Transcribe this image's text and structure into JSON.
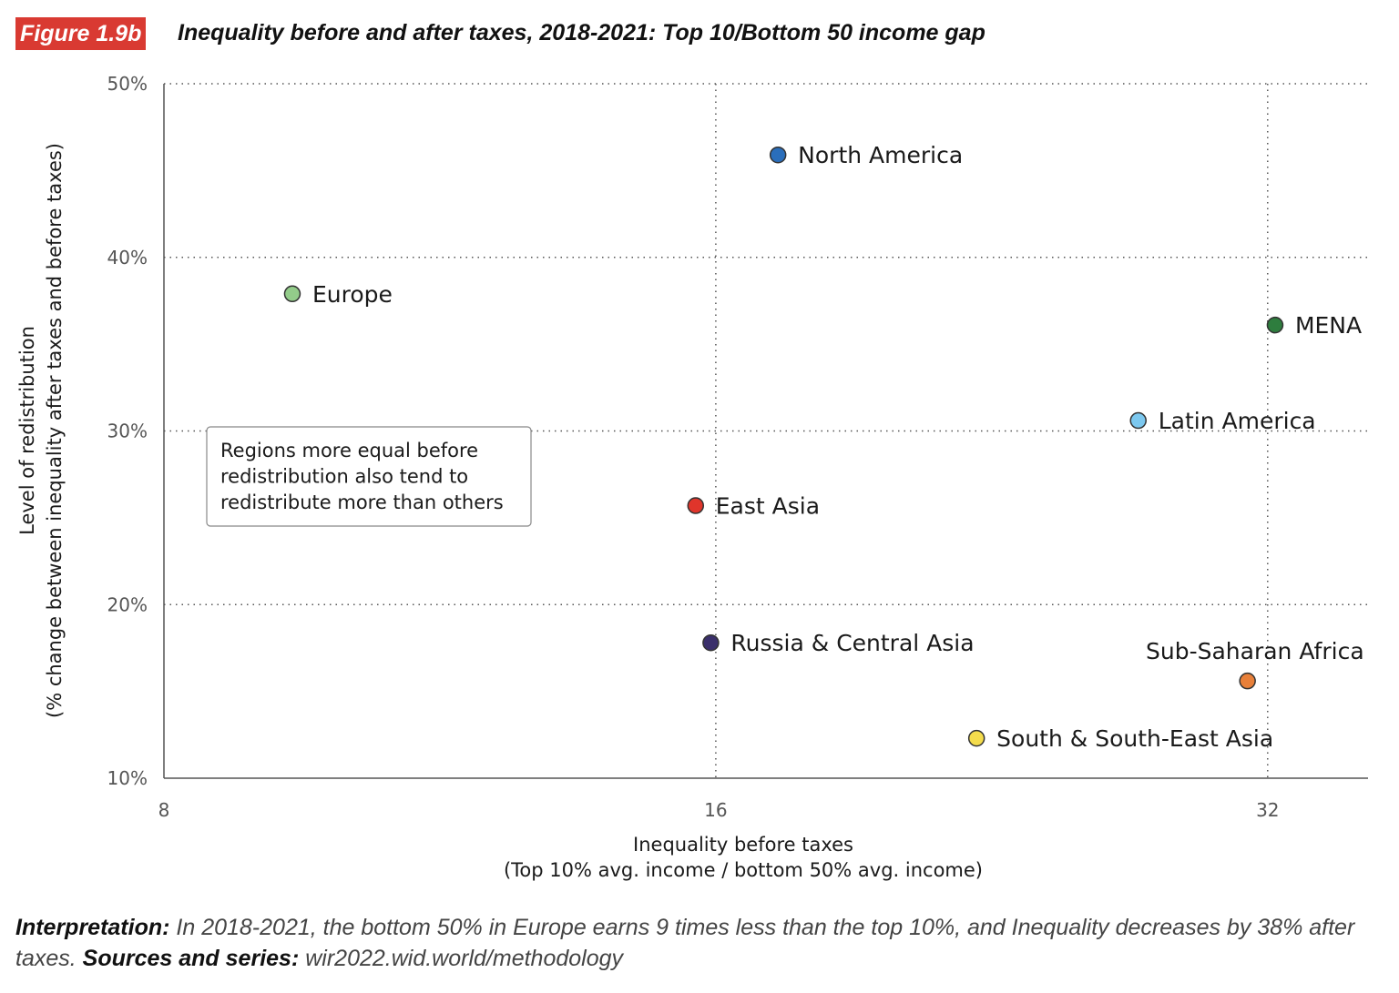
{
  "figure_label": "Figure 1.9b",
  "title": "Inequality before and after taxes, 2018-2021: Top 10/Bottom 50 income gap",
  "chart_data": {
    "type": "scatter",
    "title": "Inequality before and after taxes, 2018-2021: Top 10/Bottom 50 income gap",
    "xlabel": [
      "Inequality before taxes",
      "(Top 10% avg. income / bottom 50% avg. income)"
    ],
    "ylabel": [
      "Level of redistribution",
      "(% change between inequality after taxes and before taxes)"
    ],
    "x_scale": "log2",
    "xlim": [
      8,
      36.3
    ],
    "ylim": [
      10,
      50
    ],
    "x_ticks": [
      8,
      16,
      32
    ],
    "x_tick_labels": [
      "8",
      "16",
      "32"
    ],
    "y_ticks": [
      10,
      20,
      30,
      40,
      50
    ],
    "y_tick_labels": [
      "10%",
      "20%",
      "30%",
      "40%",
      "50%"
    ],
    "grid": "dotted",
    "points": [
      {
        "label": "North America",
        "x": 17.3,
        "y": 45.9,
        "color": "#2a6ebb"
      },
      {
        "label": "Europe",
        "x": 9.4,
        "y": 37.9,
        "color": "#93cc8a"
      },
      {
        "label": "MENA",
        "x": 32.3,
        "y": 36.1,
        "color": "#2e7d3e"
      },
      {
        "label": "Latin America",
        "x": 27.2,
        "y": 30.6,
        "color": "#7cc8ef"
      },
      {
        "label": "East Asia",
        "x": 15.6,
        "y": 25.7,
        "color": "#e0352b"
      },
      {
        "label": "Russia & Central Asia",
        "x": 15.9,
        "y": 17.8,
        "color": "#3a2f6b"
      },
      {
        "label": "Sub-Saharan Africa",
        "x": 31.2,
        "y": 15.6,
        "color": "#e8803a"
      },
      {
        "label": "South & South-East Asia",
        "x": 22.2,
        "y": 12.3,
        "color": "#f4dc4c"
      }
    ],
    "annotation": [
      "Regions more equal before",
      "redistribution also tend to",
      "redistribute more than others"
    ]
  },
  "footer": {
    "interpretation_label": "Interpretation:",
    "interpretation_text": " In 2018-2021, the bottom 50% in Europe earns 9 times less than the top 10%, and Inequality decreases by 38% after taxes. ",
    "sources_label": "Sources and series:",
    "sources_text": " wir2022.wid.world/methodology"
  }
}
